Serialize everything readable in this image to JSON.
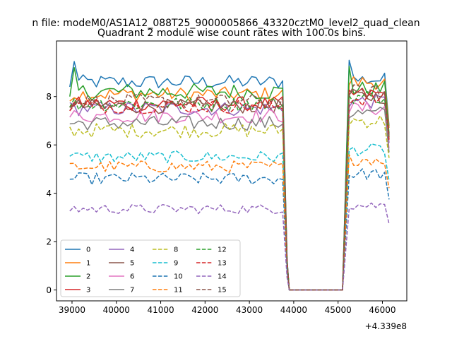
{
  "figure": {
    "suptitle": "n file: modeM0/AS1A12_088T25_9000005866_43320cztM0_level2_quad_clean",
    "offset_label": "+4.339e8"
  },
  "chart_data": {
    "type": "line",
    "title": "Quadrant 2 module wise count rates with 100.0s bins.",
    "xlabel": "",
    "ylabel": "",
    "x_offset": 433900000,
    "xlim": [
      38650,
      46550
    ],
    "ylim": [
      -0.45,
      10.3
    ],
    "xticks": [
      39000,
      40000,
      41000,
      42000,
      43000,
      44000,
      45000,
      46000
    ],
    "xtick_labels": [
      "39000",
      "40000",
      "41000",
      "42000",
      "43000",
      "44000",
      "45000",
      "46000"
    ],
    "yticks": [
      0,
      2,
      4,
      6,
      8
    ],
    "ytick_labels": [
      "0",
      "2",
      "4",
      "6",
      "8"
    ],
    "grid": false,
    "legend_position": "lower-left",
    "legend_columns": 4,
    "gap": {
      "start": 43900,
      "end": 45100,
      "value": 0
    },
    "segment1": {
      "x_start": 38950,
      "x_end": 43750,
      "step": 100
    },
    "segment2": {
      "x_start": 45250,
      "x_end": 46150,
      "step": 100
    },
    "series": [
      {
        "name": "0",
        "color": "#1f77b4",
        "linestyle": "solid",
        "level1": 8.6,
        "level2": 8.7,
        "noise": 0.3,
        "spike": 9.45
      },
      {
        "name": "1",
        "color": "#ff7f0e",
        "linestyle": "solid",
        "level1": 8.1,
        "level2": 8.6,
        "noise": 0.3
      },
      {
        "name": "2",
        "color": "#2ca02c",
        "linestyle": "solid",
        "level1": 8.2,
        "level2": 8.3,
        "noise": 0.35,
        "spike": 9.2
      },
      {
        "name": "3",
        "color": "#d62728",
        "linestyle": "solid",
        "level1": 7.7,
        "level2": 8.1,
        "noise": 0.3
      },
      {
        "name": "4",
        "color": "#9467bd",
        "linestyle": "solid",
        "level1": 7.5,
        "level2": 7.8,
        "noise": 0.3
      },
      {
        "name": "5",
        "color": "#8c564b",
        "linestyle": "solid",
        "level1": 7.6,
        "level2": 8.0,
        "noise": 0.3
      },
      {
        "name": "6",
        "color": "#e377c2",
        "linestyle": "solid",
        "level1": 7.2,
        "level2": 7.5,
        "noise": 0.3
      },
      {
        "name": "7",
        "color": "#7f7f7f",
        "linestyle": "solid",
        "level1": 6.9,
        "level2": 7.3,
        "noise": 0.3
      },
      {
        "name": "8",
        "color": "#bcbd22",
        "linestyle": "dashed",
        "level1": 6.6,
        "level2": 7.0,
        "noise": 0.3
      },
      {
        "name": "9",
        "color": "#17becf",
        "linestyle": "dashed",
        "level1": 5.5,
        "level2": 5.8,
        "noise": 0.25
      },
      {
        "name": "10",
        "color": "#1f77b4",
        "linestyle": "dashed",
        "level1": 4.6,
        "level2": 4.8,
        "noise": 0.25
      },
      {
        "name": "11",
        "color": "#ff7f0e",
        "linestyle": "dashed",
        "level1": 5.1,
        "level2": 5.4,
        "noise": 0.25
      },
      {
        "name": "12",
        "color": "#2ca02c",
        "linestyle": "dashed",
        "level1": 7.7,
        "level2": 8.0,
        "noise": 0.3
      },
      {
        "name": "13",
        "color": "#d62728",
        "linestyle": "dashed",
        "level1": 7.6,
        "level2": 7.9,
        "noise": 0.3
      },
      {
        "name": "14",
        "color": "#9467bd",
        "linestyle": "dashed",
        "level1": 3.35,
        "level2": 3.5,
        "noise": 0.2
      },
      {
        "name": "15",
        "color": "#8c564b",
        "linestyle": "dashed",
        "level1": 7.8,
        "level2": 8.2,
        "noise": 0.3
      }
    ]
  }
}
